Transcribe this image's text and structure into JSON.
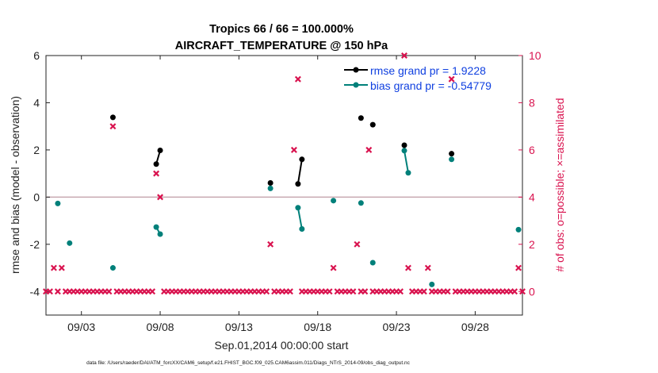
{
  "chart_data": {
    "type": "scatter",
    "title_line1": "Tropics 66 / 66 = 100.000%",
    "title_line2": "AIRCRAFT_TEMPERATURE @ 150 hPa",
    "xlabel": "Sep.01,2014 00:00:00 start",
    "ylabel_left": "rmse and bias (model - observation)",
    "ylabel_right": "# of obs: o=possible; ×=assimilated",
    "footer": "data file: /Users/raeder/DAI/ATM_forcXX/CAM6_setup/f.e21.FHIST_BGC.f09_025.CAM6assim.011/Diags_NTrS_2014-09/obs_diag_output.nc",
    "x_ticks": [
      {
        "label": "09/03",
        "x": 3
      },
      {
        "label": "09/08",
        "x": 8
      },
      {
        "label": "09/13",
        "x": 13
      },
      {
        "label": "09/18",
        "x": 18
      },
      {
        "label": "09/23",
        "x": 23
      },
      {
        "label": "09/28",
        "x": 28
      }
    ],
    "xlim": [
      0.75,
      31
    ],
    "ylim_left": [
      -5,
      6
    ],
    "y_ticks_left": [
      -4,
      -2,
      0,
      2,
      4,
      6
    ],
    "ylim_right": [
      -1,
      10
    ],
    "y_ticks_right": [
      0,
      2,
      4,
      6,
      8,
      10
    ],
    "colors": {
      "rmse": "#000000",
      "bias": "#00807a",
      "obs": "#d9134f",
      "zero_line": "#c8a8b0",
      "right_axis": "#d9134f",
      "legend_text": "#1040e0"
    },
    "legend": [
      {
        "key": "rmse",
        "label": "rmse grand pr = 1.9228"
      },
      {
        "key": "bias",
        "label": "bias grand pr = -0.54779"
      }
    ],
    "rmse": [
      [
        5,
        3.38
      ],
      [
        7.75,
        1.4
      ],
      [
        8,
        1.98
      ],
      [
        15,
        0.6
      ],
      [
        16.75,
        0.56
      ],
      [
        17,
        1.6
      ],
      [
        20.75,
        3.35
      ],
      [
        21.5,
        3.07
      ],
      [
        23.5,
        2.2
      ],
      [
        26.5,
        1.84
      ]
    ],
    "bias": [
      [
        1.5,
        -0.27
      ],
      [
        2.25,
        -1.95
      ],
      [
        5,
        -3.0
      ],
      [
        7.75,
        -1.27
      ],
      [
        8,
        -1.57
      ],
      [
        15,
        0.37
      ],
      [
        16.75,
        -0.45
      ],
      [
        17,
        -1.35
      ],
      [
        19,
        -0.15
      ],
      [
        20.75,
        -0.25
      ],
      [
        21.5,
        -2.78
      ],
      [
        23.5,
        1.97
      ],
      [
        23.75,
        1.03
      ],
      [
        25.25,
        -3.7
      ],
      [
        26.5,
        1.6
      ],
      [
        30.75,
        -1.38
      ]
    ],
    "rmse_connected": [
      [
        [
          7.75,
          1.4
        ],
        [
          8,
          1.98
        ]
      ],
      [
        [
          16.75,
          0.56
        ],
        [
          17,
          1.6
        ]
      ]
    ],
    "bias_connected": [
      [
        [
          7.75,
          -1.27
        ],
        [
          8,
          -1.57
        ]
      ],
      [
        [
          16.75,
          -0.45
        ],
        [
          17,
          -1.35
        ]
      ],
      [
        [
          23.5,
          1.97
        ],
        [
          23.75,
          1.03
        ]
      ]
    ],
    "obs_counts": {
      "start": 0.75,
      "step": 0.25,
      "default": 0,
      "nonzero": [
        [
          1.25,
          1
        ],
        [
          1.75,
          1
        ],
        [
          5,
          7
        ],
        [
          7.75,
          5
        ],
        [
          8,
          4
        ],
        [
          15,
          2
        ],
        [
          16.5,
          6
        ],
        [
          16.75,
          9
        ],
        [
          19,
          1
        ],
        [
          20.5,
          2
        ],
        [
          21.25,
          6
        ],
        [
          23.5,
          10
        ],
        [
          23.75,
          1
        ],
        [
          25,
          1
        ],
        [
          26.5,
          9
        ],
        [
          30.75,
          1
        ]
      ]
    }
  }
}
